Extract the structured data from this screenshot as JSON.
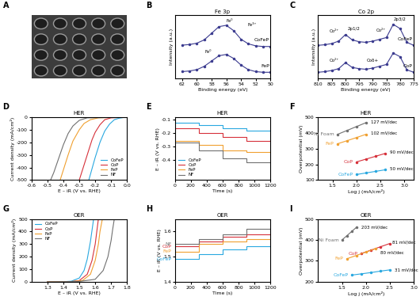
{
  "chart_data": [
    {
      "type": "image",
      "panel": "A"
    },
    {
      "type": "spectrum",
      "panel": "B",
      "title": "Fe 3p",
      "x_label": "Binding energy (eV)",
      "y_label": "Intensity (a.u.)",
      "xlim": [
        63,
        50
      ],
      "xticks": [
        62,
        60,
        58,
        56,
        54,
        52,
        50
      ],
      "ylim": [
        0,
        9.5
      ],
      "tick_labels": "x",
      "marker": "o",
      "line_style": "solid",
      "series": [
        {
          "name": "CoFeP",
          "color": "#3b3b8f",
          "x": [
            62,
            61,
            60,
            59,
            58,
            57,
            56,
            55,
            54,
            53,
            52,
            51,
            50
          ],
          "values": [
            5.0,
            5.1,
            5.3,
            5.8,
            6.8,
            7.8,
            8.0,
            7.2,
            5.9,
            5.2,
            4.9,
            4.8,
            4.8
          ]
        },
        {
          "name": "FeP",
          "color": "#3b3b8f",
          "x": [
            62,
            61,
            60,
            59,
            58,
            57,
            56,
            55,
            54,
            53,
            52,
            51,
            50
          ],
          "values": [
            1.0,
            1.1,
            1.3,
            1.8,
            2.6,
            3.4,
            3.6,
            3.0,
            2.0,
            1.3,
            1.0,
            0.9,
            0.9
          ]
        }
      ],
      "annotations": [
        {
          "text": "Fe⁰",
          "x": 55.5,
          "y": 8.7
        },
        {
          "text": "Fe³⁺",
          "x": 52.5,
          "y": 8.0
        },
        {
          "text": "Fe⁰",
          "x": 58.5,
          "y": 4.0
        }
      ]
    },
    {
      "type": "spectrum",
      "panel": "C",
      "title": "Co 2p",
      "x_label": "Binding energy (eV)",
      "y_label": "Intensity (a.u.)",
      "xlim": [
        810,
        775
      ],
      "xticks": [
        810,
        805,
        800,
        795,
        790,
        785,
        780,
        775
      ],
      "ylim": [
        0,
        10.5
      ],
      "tick_labels": "x",
      "marker": "o",
      "line_style": "solid",
      "series": [
        {
          "name": "CoFeP",
          "color": "#3b3b8f",
          "x": [
            810,
            807.5,
            805,
            802.5,
            800,
            797.5,
            795,
            792.5,
            790,
            787.5,
            785,
            782.5,
            780,
            777.5,
            775
          ],
          "values": [
            5.5,
            5.6,
            5.8,
            6.2,
            7.3,
            6.4,
            6.1,
            6.0,
            6.2,
            6.5,
            6.8,
            9.0,
            8.3,
            6.0,
            5.5
          ]
        },
        {
          "name": "CoP",
          "color": "#3b3b8f",
          "x": [
            810,
            807.5,
            805,
            802.5,
            800,
            797.5,
            795,
            792.5,
            790,
            787.5,
            785,
            782.5,
            780,
            777.5,
            775
          ],
          "values": [
            1.0,
            1.1,
            1.3,
            1.6,
            2.6,
            1.8,
            1.6,
            1.5,
            1.7,
            2.0,
            2.3,
            4.2,
            3.6,
            1.4,
            1.0
          ]
        }
      ],
      "annotations": [
        {
          "text": "Co²⁺",
          "x": 804,
          "y": 7.8
        },
        {
          "text": "2p1/2",
          "x": 797,
          "y": 8.2
        },
        {
          "text": "Co²⁺",
          "x": 787,
          "y": 8.0
        },
        {
          "text": "2p3/2",
          "x": 780,
          "y": 9.8
        },
        {
          "text": "Co²⁺",
          "x": 804,
          "y": 3.0
        },
        {
          "text": "Coδ+",
          "x": 790,
          "y": 3.0
        }
      ]
    },
    {
      "type": "line",
      "panel": "D",
      "title": "HER",
      "x_label": "E – iR (V vs. RHE)",
      "y_label": "Current density (mA/cm²)",
      "xlim": [
        -0.6,
        0.0
      ],
      "xticks": [
        -0.6,
        -0.5,
        -0.4,
        -0.3,
        -0.2,
        -0.1,
        0.0
      ],
      "ylim": [
        -500,
        0
      ],
      "yticks": [
        -500,
        -400,
        -300,
        -200,
        -100,
        0
      ],
      "legend": "lower right",
      "line_style": "solid",
      "series": [
        {
          "name": "CoFeP",
          "color": "#29a8e0",
          "x": [
            -0.24,
            -0.22,
            -0.2,
            -0.17,
            -0.14,
            -0.11,
            -0.08,
            -0.05,
            -0.02,
            0.0
          ],
          "values": [
            -500,
            -410,
            -320,
            -200,
            -110,
            -55,
            -20,
            -8,
            -2,
            0
          ]
        },
        {
          "name": "CoP",
          "color": "#d6303a",
          "x": [
            -0.3,
            -0.28,
            -0.25,
            -0.22,
            -0.2,
            -0.17,
            -0.14,
            -0.1,
            0.0
          ],
          "values": [
            -500,
            -420,
            -300,
            -180,
            -120,
            -60,
            -20,
            -5,
            0
          ]
        },
        {
          "name": "FeP",
          "color": "#f0a030",
          "x": [
            -0.42,
            -0.4,
            -0.37,
            -0.34,
            -0.3,
            -0.27,
            -0.23,
            -0.18,
            0.0
          ],
          "values": [
            -500,
            -420,
            -300,
            -190,
            -100,
            -50,
            -20,
            -5,
            0
          ]
        },
        {
          "name": "NF",
          "color": "#707070",
          "x": [
            -0.48,
            -0.46,
            -0.43,
            -0.4,
            -0.37,
            -0.34,
            -0.3,
            -0.25,
            0.0
          ],
          "values": [
            -500,
            -440,
            -330,
            -220,
            -130,
            -70,
            -25,
            -5,
            0
          ]
        }
      ]
    },
    {
      "type": "line",
      "panel": "E",
      "title": "HER",
      "x_label": "Time (s)",
      "y_label": "E – iR (V vs. RHE)",
      "xlim": [
        0,
        1200
      ],
      "xticks": [
        0,
        200,
        400,
        600,
        800,
        1000,
        1200
      ],
      "ylim": [
        -0.55,
        -0.08
      ],
      "yticks": [
        -0.4,
        -0.3,
        -0.2,
        -0.1
      ],
      "legend": "lower left",
      "line_style": "solid",
      "series": [
        {
          "name": "CoFeP",
          "color": "#29a8e0",
          "x": [
            0,
            300,
            300,
            600,
            600,
            900,
            900,
            1200
          ],
          "values": [
            -0.12,
            -0.12,
            -0.14,
            -0.14,
            -0.16,
            -0.16,
            -0.18,
            -0.18
          ]
        },
        {
          "name": "CoP",
          "color": "#d6303a",
          "x": [
            0,
            300,
            300,
            600,
            600,
            900,
            900,
            1200
          ],
          "values": [
            -0.16,
            -0.16,
            -0.2,
            -0.2,
            -0.23,
            -0.23,
            -0.26,
            -0.26
          ]
        },
        {
          "name": "FeP",
          "color": "#f0a030",
          "x": [
            0,
            300,
            300,
            600,
            600,
            900,
            900,
            1200
          ],
          "values": [
            -0.26,
            -0.26,
            -0.29,
            -0.29,
            -0.33,
            -0.33,
            -0.34,
            -0.34
          ]
        },
        {
          "name": "NF",
          "color": "#707070",
          "x": [
            0,
            300,
            300,
            600,
            600,
            900,
            900,
            1200
          ],
          "values": [
            -0.27,
            -0.27,
            -0.33,
            -0.33,
            -0.39,
            -0.39,
            -0.42,
            -0.42
          ]
        }
      ]
    },
    {
      "type": "line",
      "panel": "F",
      "title": "HER",
      "x_label": "Log j (mA/cm²)",
      "y_label": "Overpotential (mV)",
      "xlim": [
        1.2,
        3.2
      ],
      "xticks": [
        1.5,
        2.0,
        2.5,
        3.0
      ],
      "ylim": [
        100,
        500
      ],
      "yticks": [
        100,
        200,
        300,
        400,
        500
      ],
      "marker": "o",
      "line_style": "solid",
      "series": [
        {
          "name": "Ni Foam",
          "color": "#707070",
          "x": [
            1.6,
            1.8,
            2.0,
            2.2
          ],
          "values": [
            390,
            415,
            440,
            465
          ]
        },
        {
          "name": "FeP",
          "color": "#f0a030",
          "x": [
            1.6,
            1.8,
            2.0,
            2.2
          ],
          "values": [
            330,
            350,
            370,
            391
          ]
        },
        {
          "name": "CoP",
          "color": "#d6303a",
          "x": [
            2.0,
            2.2,
            2.4,
            2.6
          ],
          "values": [
            215,
            233,
            251,
            269
          ]
        },
        {
          "name": "CoFeP",
          "color": "#29a8e0",
          "x": [
            2.0,
            2.2,
            2.4,
            2.6
          ],
          "values": [
            135,
            145,
            155,
            165
          ]
        }
      ],
      "annotations": [
        {
          "text": "127 mV/dec",
          "x": 2.3,
          "y": 472
        },
        {
          "text": "102 mV/dec",
          "x": 2.3,
          "y": 398
        },
        {
          "text": "90 mV/dec",
          "x": 2.7,
          "y": 280
        },
        {
          "text": "50 mV/dec",
          "x": 2.7,
          "y": 170
        }
      ]
    },
    {
      "type": "line",
      "panel": "G",
      "title": "OER",
      "x_label": "E – iR (V vs. RHE)",
      "y_label": "Current density (mA/cm²)",
      "xlim": [
        1.2,
        1.8
      ],
      "xticks": [
        1.3,
        1.4,
        1.5,
        1.6,
        1.7,
        1.8
      ],
      "ylim": [
        0,
        500
      ],
      "yticks": [
        0,
        100,
        200,
        300,
        400,
        500
      ],
      "legend": "upper left",
      "line_style": "solid",
      "series": [
        {
          "name": "CoFeP",
          "color": "#29a8e0",
          "x": [
            1.3,
            1.4,
            1.45,
            1.5,
            1.53,
            1.55,
            1.57,
            1.59
          ],
          "values": [
            0,
            1,
            5,
            30,
            90,
            180,
            320,
            500
          ]
        },
        {
          "name": "CoP",
          "color": "#d6303a",
          "x": [
            1.3,
            1.45,
            1.5,
            1.55,
            1.58,
            1.6,
            1.61,
            1.62
          ],
          "values": [
            0,
            2,
            10,
            60,
            170,
            300,
            400,
            500
          ]
        },
        {
          "name": "FeP",
          "color": "#f0a030",
          "x": [
            1.3,
            1.45,
            1.52,
            1.57,
            1.6,
            1.62,
            1.63,
            1.645
          ],
          "values": [
            0,
            2,
            10,
            60,
            170,
            300,
            400,
            500
          ]
        },
        {
          "name": "NF",
          "color": "#707070",
          "x": [
            1.3,
            1.5,
            1.6,
            1.65,
            1.68,
            1.7,
            1.71,
            1.72
          ],
          "values": [
            0,
            3,
            20,
            90,
            200,
            330,
            420,
            500
          ]
        }
      ]
    },
    {
      "type": "line",
      "panel": "H",
      "title": "OER",
      "x_label": "Time (s)",
      "y_label": "E – iR (V vs. RHE)",
      "xlim": [
        0,
        1200
      ],
      "xticks": [
        0,
        200,
        400,
        600,
        800,
        1000,
        1200
      ],
      "ylim": [
        1.4,
        1.65
      ],
      "yticks": [
        1.4,
        1.5,
        1.6
      ],
      "line_style": "solid",
      "series": [
        {
          "name": "CoFeP",
          "color": "#29a8e0",
          "x": [
            0,
            300,
            300,
            600,
            600,
            900,
            900,
            1200
          ],
          "values": [
            1.49,
            1.49,
            1.51,
            1.51,
            1.53,
            1.53,
            1.54,
            1.54
          ]
        },
        {
          "name": "CoP",
          "color": "#d6303a",
          "x": [
            0,
            300,
            300,
            600,
            600,
            900,
            900,
            1200
          ],
          "values": [
            1.54,
            1.54,
            1.56,
            1.56,
            1.58,
            1.58,
            1.59,
            1.59
          ]
        },
        {
          "name": "FeP",
          "color": "#f0a030",
          "x": [
            0,
            300,
            300,
            600,
            600,
            900,
            900,
            1200
          ],
          "values": [
            1.52,
            1.52,
            1.55,
            1.55,
            1.56,
            1.56,
            1.57,
            1.57
          ]
        },
        {
          "name": "NF",
          "color": "#707070",
          "x": [
            0,
            300,
            300,
            600,
            600,
            900,
            900,
            1200
          ],
          "values": [
            1.55,
            1.55,
            1.57,
            1.57,
            1.59,
            1.59,
            1.61,
            1.61
          ]
        }
      ]
    },
    {
      "type": "line",
      "panel": "I",
      "title": "OER",
      "x_label": "Log j (mA/cm²)",
      "y_label": "Overpotential (mV)",
      "xlim": [
        1.0,
        3.0
      ],
      "xticks": [
        1.5,
        2.0,
        2.5,
        3.0
      ],
      "ylim": [
        200,
        500
      ],
      "yticks": [
        200,
        300,
        400,
        500
      ],
      "marker": "o",
      "line_style": "solid",
      "series": [
        {
          "name": "Ni Foam",
          "color": "#707070",
          "x": [
            1.5,
            1.6,
            1.7,
            1.8
          ],
          "values": [
            400,
            420,
            440,
            460
          ]
        },
        {
          "name": "CoP",
          "color": "#d6303a",
          "x": [
            1.9,
            2.1,
            2.3,
            2.5
          ],
          "values": [
            335,
            351,
            367,
            383
          ]
        },
        {
          "name": "FeP",
          "color": "#f0a030",
          "x": [
            1.6,
            1.8,
            2.0,
            2.2
          ],
          "values": [
            310,
            326,
            342,
            358
          ]
        },
        {
          "name": "CoFeP",
          "color": "#29a8e0",
          "x": [
            1.7,
            1.9,
            2.1,
            2.3,
            2.5
          ],
          "values": [
            232,
            238,
            244,
            251,
            257
          ]
        }
      ],
      "annotations": [
        {
          "text": "203 mV/dec",
          "x": 1.9,
          "y": 462
        },
        {
          "text": "81 mV/dec",
          "x": 2.55,
          "y": 390
        },
        {
          "text": "80 mV/dec",
          "x": 2.3,
          "y": 340
        },
        {
          "text": "31 mV/dec",
          "x": 2.6,
          "y": 255
        }
      ]
    }
  ]
}
